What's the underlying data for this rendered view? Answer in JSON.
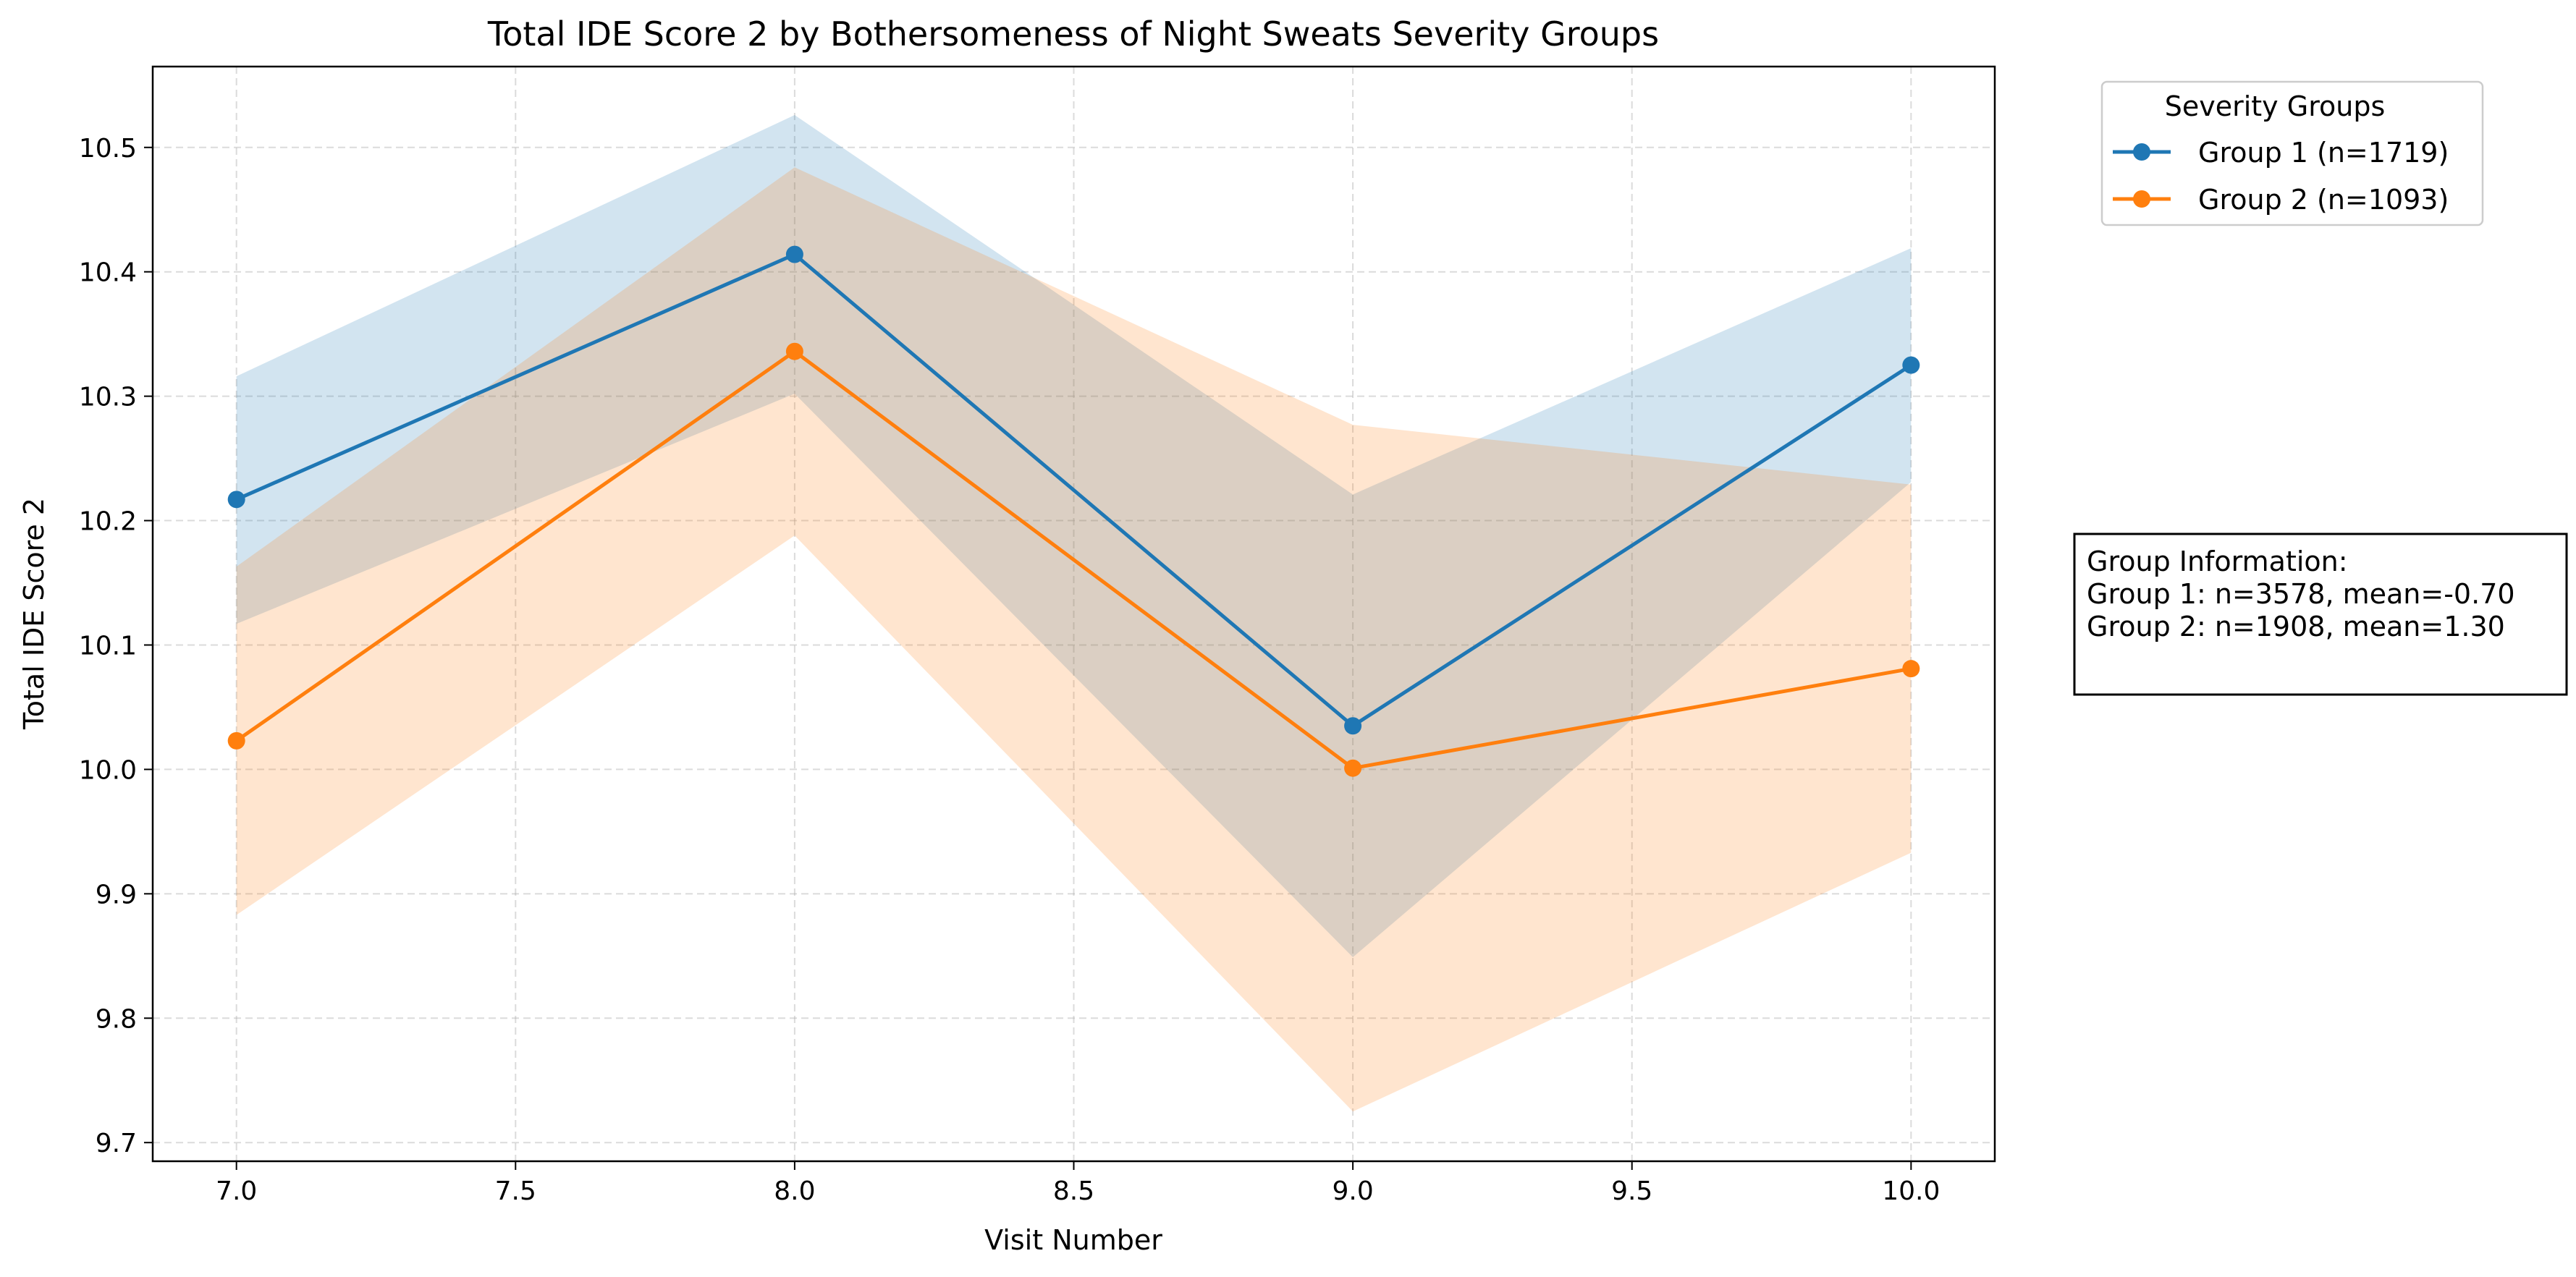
{
  "chart_data": {
    "type": "line",
    "title": "Total IDE Score 2 by Bothersomeness of Night Sweats Severity Groups",
    "xlabel": "Visit Number",
    "ylabel": "Total IDE Score 2",
    "xlim": [
      6.85,
      10.15
    ],
    "ylim": [
      9.685,
      10.565
    ],
    "x_ticks": [
      "7.0",
      "7.5",
      "8.0",
      "8.5",
      "9.0",
      "9.5",
      "10.0"
    ],
    "y_ticks": [
      "9.7",
      "9.8",
      "9.9",
      "10.0",
      "10.1",
      "10.2",
      "10.3",
      "10.4",
      "10.5"
    ],
    "grid": true,
    "legend": {
      "title": "Severity Groups",
      "placement": "outside top-right"
    },
    "x": [
      7,
      8,
      9,
      10
    ],
    "series": [
      {
        "name": "Group 1 (n=1719)",
        "color": "#1f77b4",
        "values": [
          10.217,
          10.414,
          10.035,
          10.325
        ],
        "lower": [
          10.117,
          10.302,
          9.849,
          10.231
        ],
        "upper": [
          10.316,
          10.526,
          10.221,
          10.419
        ]
      },
      {
        "name": "Group 2 (n=1093)",
        "color": "#ff7f0e",
        "values": [
          10.023,
          10.336,
          10.001,
          10.081
        ],
        "lower": [
          9.883,
          10.188,
          9.725,
          9.933
        ],
        "upper": [
          10.163,
          10.484,
          10.277,
          10.229
        ]
      }
    ],
    "annotation": {
      "lines": [
        "Group Information:",
        "Group 1: n=3578, mean=-0.70",
        "Group 2: n=1908, mean=1.30"
      ]
    }
  }
}
